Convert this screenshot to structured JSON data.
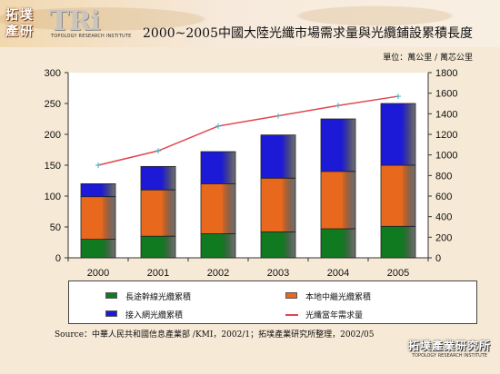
{
  "header": {
    "logo_left_lines": [
      "拓",
      "墣",
      "產",
      "研"
    ],
    "logo_tri": "TRi",
    "logo_tri_sub": "TOPOLOGY RESEARCH INSTITUTE",
    "title": "2000~2005中國大陸光纖市場需求量與光纜鋪設累積長度",
    "unit": "單位：萬公里 / 萬芯公里"
  },
  "chart_data": {
    "type": "bar",
    "stacked": true,
    "categories": [
      "2000",
      "2001",
      "2002",
      "2003",
      "2004",
      "2005"
    ],
    "series": [
      {
        "name": "長途幹線光纜累積",
        "values": [
          30,
          35,
          39,
          42,
          47,
          51
        ],
        "color": "#0f7a1f"
      },
      {
        "name": "本地中繼光纜累積",
        "values": [
          69,
          75,
          81,
          87,
          93,
          99
        ],
        "color": "#e8681e"
      },
      {
        "name": "接入網光纜累積",
        "values": [
          21,
          38,
          52,
          70,
          85,
          100
        ],
        "color": "#1c1ad6"
      }
    ],
    "line_series": {
      "name": "光纖當年需求量",
      "axis": "right",
      "values": [
        900,
        1040,
        1280,
        1380,
        1480,
        1570
      ],
      "color": "#e0464f"
    },
    "ylim_left": [
      0,
      300
    ],
    "yticks_left": [
      "0",
      "50",
      "100",
      "150",
      "200",
      "250",
      "300"
    ],
    "ylim_right": [
      0,
      1800
    ],
    "yticks_right": [
      "0",
      "200",
      "400",
      "600",
      "800",
      "1000",
      "1200",
      "1400",
      "1600",
      "1800"
    ],
    "grid": false,
    "legend_position": "bottom"
  },
  "footer": {
    "source": "Source：中華人民共和國信息產業部 /KMI，2002/1；拓墣產業研究所整理，2002/05",
    "logo_main": "拓墣產業研究所",
    "logo_sub": "TOPOLOGY RESEARCH INSTITUTE"
  }
}
